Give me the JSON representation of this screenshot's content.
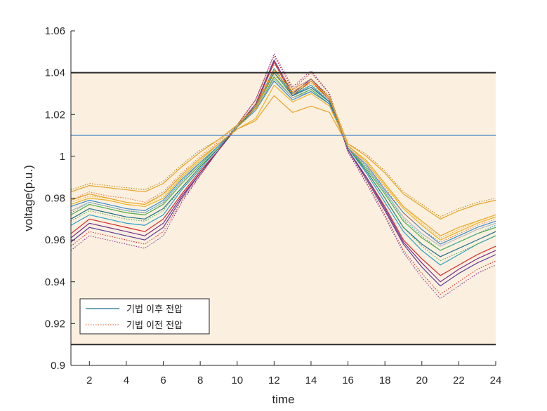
{
  "chart_data": {
    "type": "line",
    "title": "",
    "xlabel": "time",
    "ylabel": "voltage(p.u.)",
    "xlim": [
      1,
      24
    ],
    "ylim": [
      0.9,
      1.06
    ],
    "xticks": [
      2,
      4,
      6,
      8,
      10,
      12,
      14,
      16,
      18,
      20,
      22,
      24
    ],
    "yticks": [
      0.9,
      0.92,
      0.94,
      0.96,
      0.98,
      1,
      1.02,
      1.04,
      1.06
    ],
    "ytick_labels": [
      "0.9",
      "0.92",
      "0.94",
      "0.96",
      "0.98",
      "1",
      "1.02",
      "1.04",
      "1.06"
    ],
    "grid": false,
    "legend_position": "bottom-left",
    "band": {
      "lower": 0.91,
      "upper": 1.04,
      "color": "#fbf0e0"
    },
    "reference_lines": [
      {
        "y": 1.04,
        "color": "#2b2b2b"
      },
      {
        "y": 0.91,
        "color": "#2b2b2b"
      },
      {
        "y": 1.01,
        "color": "#5b8fc7"
      }
    ],
    "legend": [
      {
        "label": "기법 이후 전압",
        "style": "solid",
        "color": "#1f6f8b"
      },
      {
        "label": "기법 이전 전압",
        "style": "dotted",
        "color": "#e8734a"
      }
    ],
    "x": [
      1,
      2,
      3,
      4,
      5,
      6,
      7,
      8,
      9,
      10,
      11,
      12,
      13,
      14,
      15,
      16,
      17,
      18,
      19,
      20,
      21,
      22,
      23,
      24
    ],
    "series": [
      {
        "style": "solid",
        "color": "#d62728",
        "values": [
          0.963,
          0.97,
          0.968,
          0.966,
          0.964,
          0.97,
          0.982,
          0.993,
          1.003,
          1.014,
          1.024,
          1.045,
          1.029,
          1.036,
          1.027,
          1.003,
          0.99,
          0.976,
          0.96,
          0.951,
          0.943,
          0.948,
          0.953,
          0.957
        ]
      },
      {
        "style": "solid",
        "color": "#7b2d8e",
        "values": [
          0.961,
          0.968,
          0.966,
          0.964,
          0.962,
          0.968,
          0.981,
          0.992,
          1.003,
          1.014,
          1.025,
          1.046,
          1.03,
          1.037,
          1.028,
          1.003,
          0.99,
          0.975,
          0.959,
          0.949,
          0.94,
          0.946,
          0.951,
          0.955
        ]
      },
      {
        "style": "solid",
        "color": "#5e3c99",
        "values": [
          0.959,
          0.966,
          0.964,
          0.962,
          0.96,
          0.966,
          0.98,
          0.992,
          1.003,
          1.014,
          1.025,
          1.046,
          1.03,
          1.037,
          1.028,
          1.003,
          0.989,
          0.974,
          0.958,
          0.947,
          0.938,
          0.944,
          0.949,
          0.953
        ]
      },
      {
        "style": "solid",
        "color": "#2ca0c8",
        "values": [
          0.967,
          0.972,
          0.97,
          0.968,
          0.967,
          0.972,
          0.984,
          0.994,
          1.004,
          1.014,
          1.023,
          1.042,
          1.029,
          1.034,
          1.026,
          1.004,
          0.992,
          0.978,
          0.964,
          0.955,
          0.948,
          0.953,
          0.958,
          0.962
        ]
      },
      {
        "style": "solid",
        "color": "#1f6f8b",
        "values": [
          0.97,
          0.975,
          0.973,
          0.971,
          0.97,
          0.975,
          0.985,
          0.995,
          1.004,
          1.014,
          1.023,
          1.04,
          1.029,
          1.033,
          1.026,
          1.004,
          0.993,
          0.98,
          0.966,
          0.958,
          0.952,
          0.956,
          0.96,
          0.964
        ]
      },
      {
        "style": "solid",
        "color": "#4daf4a",
        "values": [
          0.972,
          0.977,
          0.975,
          0.973,
          0.972,
          0.977,
          0.987,
          0.996,
          1.005,
          1.014,
          1.022,
          1.038,
          1.028,
          1.032,
          1.025,
          1.004,
          0.994,
          0.982,
          0.969,
          0.961,
          0.955,
          0.959,
          0.963,
          0.966
        ]
      },
      {
        "style": "solid",
        "color": "#b8b8b8",
        "values": [
          0.974,
          0.978,
          0.976,
          0.974,
          0.973,
          0.978,
          0.988,
          0.997,
          1.005,
          1.014,
          1.022,
          1.037,
          1.028,
          1.031,
          1.025,
          1.004,
          0.995,
          0.983,
          0.971,
          0.963,
          0.957,
          0.961,
          0.965,
          0.968
        ]
      },
      {
        "style": "solid",
        "color": "#3a8ccf",
        "values": [
          0.976,
          0.979,
          0.977,
          0.975,
          0.974,
          0.979,
          0.989,
          0.997,
          1.005,
          1.014,
          1.022,
          1.036,
          1.027,
          1.031,
          1.025,
          1.004,
          0.996,
          0.984,
          0.973,
          0.965,
          0.958,
          0.962,
          0.966,
          0.969
        ]
      },
      {
        "style": "solid",
        "color": "#edb120",
        "values": [
          0.977,
          0.98,
          0.979,
          0.977,
          0.976,
          0.98,
          0.99,
          0.998,
          1.006,
          1.013,
          1.018,
          1.034,
          1.026,
          1.03,
          1.024,
          1.005,
          0.997,
          0.986,
          0.975,
          0.967,
          0.96,
          0.964,
          0.968,
          0.971
        ]
      },
      {
        "style": "solid",
        "color": "#e8a020",
        "values": [
          0.979,
          0.982,
          0.98,
          0.978,
          0.977,
          0.982,
          0.991,
          0.999,
          1.006,
          1.013,
          1.017,
          1.029,
          1.021,
          1.024,
          1.021,
          1.005,
          0.998,
          0.987,
          0.976,
          0.969,
          0.962,
          0.966,
          0.969,
          0.972
        ]
      },
      {
        "style": "dotted",
        "color": "#d62728",
        "values": [
          0.957,
          0.964,
          0.962,
          0.96,
          0.958,
          0.964,
          0.979,
          0.991,
          1.003,
          1.015,
          1.027,
          1.048,
          1.032,
          1.04,
          1.03,
          1.002,
          0.988,
          0.972,
          0.955,
          0.944,
          0.934,
          0.94,
          0.946,
          0.95
        ]
      },
      {
        "style": "dotted",
        "color": "#7b2d8e",
        "values": [
          0.955,
          0.962,
          0.96,
          0.958,
          0.956,
          0.962,
          0.978,
          0.991,
          1.003,
          1.015,
          1.027,
          1.049,
          1.033,
          1.041,
          1.03,
          1.002,
          0.987,
          0.971,
          0.954,
          0.942,
          0.932,
          0.938,
          0.944,
          0.948
        ]
      },
      {
        "style": "dotted",
        "color": "#4daf4a",
        "values": [
          0.969,
          0.974,
          0.972,
          0.97,
          0.969,
          0.974,
          0.985,
          0.995,
          1.004,
          1.014,
          1.024,
          1.041,
          1.03,
          1.035,
          1.027,
          1.004,
          0.993,
          0.98,
          0.966,
          0.957,
          0.95,
          0.954,
          0.958,
          0.962
        ]
      },
      {
        "style": "dotted",
        "color": "#2ca0c8",
        "values": [
          0.973,
          0.978,
          0.976,
          0.974,
          0.973,
          0.978,
          0.988,
          0.997,
          1.005,
          1.015,
          1.024,
          1.04,
          1.03,
          1.034,
          1.027,
          1.004,
          0.995,
          0.983,
          0.97,
          0.962,
          0.955,
          0.959,
          0.963,
          0.967
        ]
      },
      {
        "style": "dotted",
        "color": "#edb120",
        "values": [
          0.978,
          0.981,
          0.98,
          0.978,
          0.977,
          0.981,
          0.991,
          0.999,
          1.006,
          1.014,
          1.022,
          1.039,
          1.03,
          1.035,
          1.027,
          1.005,
          0.998,
          0.987,
          0.976,
          0.968,
          0.961,
          0.965,
          0.969,
          0.972
        ]
      },
      {
        "style": "dotted",
        "color": "#e8734a",
        "values": [
          0.979,
          0.983,
          0.981,
          0.98,
          0.978,
          0.983,
          0.992,
          1.0,
          1.007,
          1.015,
          1.025,
          1.044,
          1.032,
          1.037,
          1.028,
          1.004,
          0.996,
          0.985,
          0.973,
          0.965,
          0.959,
          0.963,
          0.967,
          0.97
        ]
      },
      {
        "style": "dotted",
        "color": "#b8860b",
        "values": [
          0.984,
          0.987,
          0.986,
          0.985,
          0.984,
          0.988,
          0.996,
          1.003,
          1.008,
          1.015,
          1.024,
          1.042,
          1.032,
          1.037,
          1.029,
          1.006,
          1.001,
          0.993,
          0.983,
          0.977,
          0.971,
          0.975,
          0.978,
          0.98
        ]
      },
      {
        "style": "solid",
        "color": "#e8a020",
        "values": [
          0.983,
          0.986,
          0.985,
          0.984,
          0.983,
          0.987,
          0.995,
          1.002,
          1.008,
          1.015,
          1.023,
          1.041,
          1.031,
          1.036,
          1.028,
          1.006,
          1.0,
          0.992,
          0.982,
          0.976,
          0.97,
          0.974,
          0.977,
          0.979
        ]
      }
    ]
  }
}
